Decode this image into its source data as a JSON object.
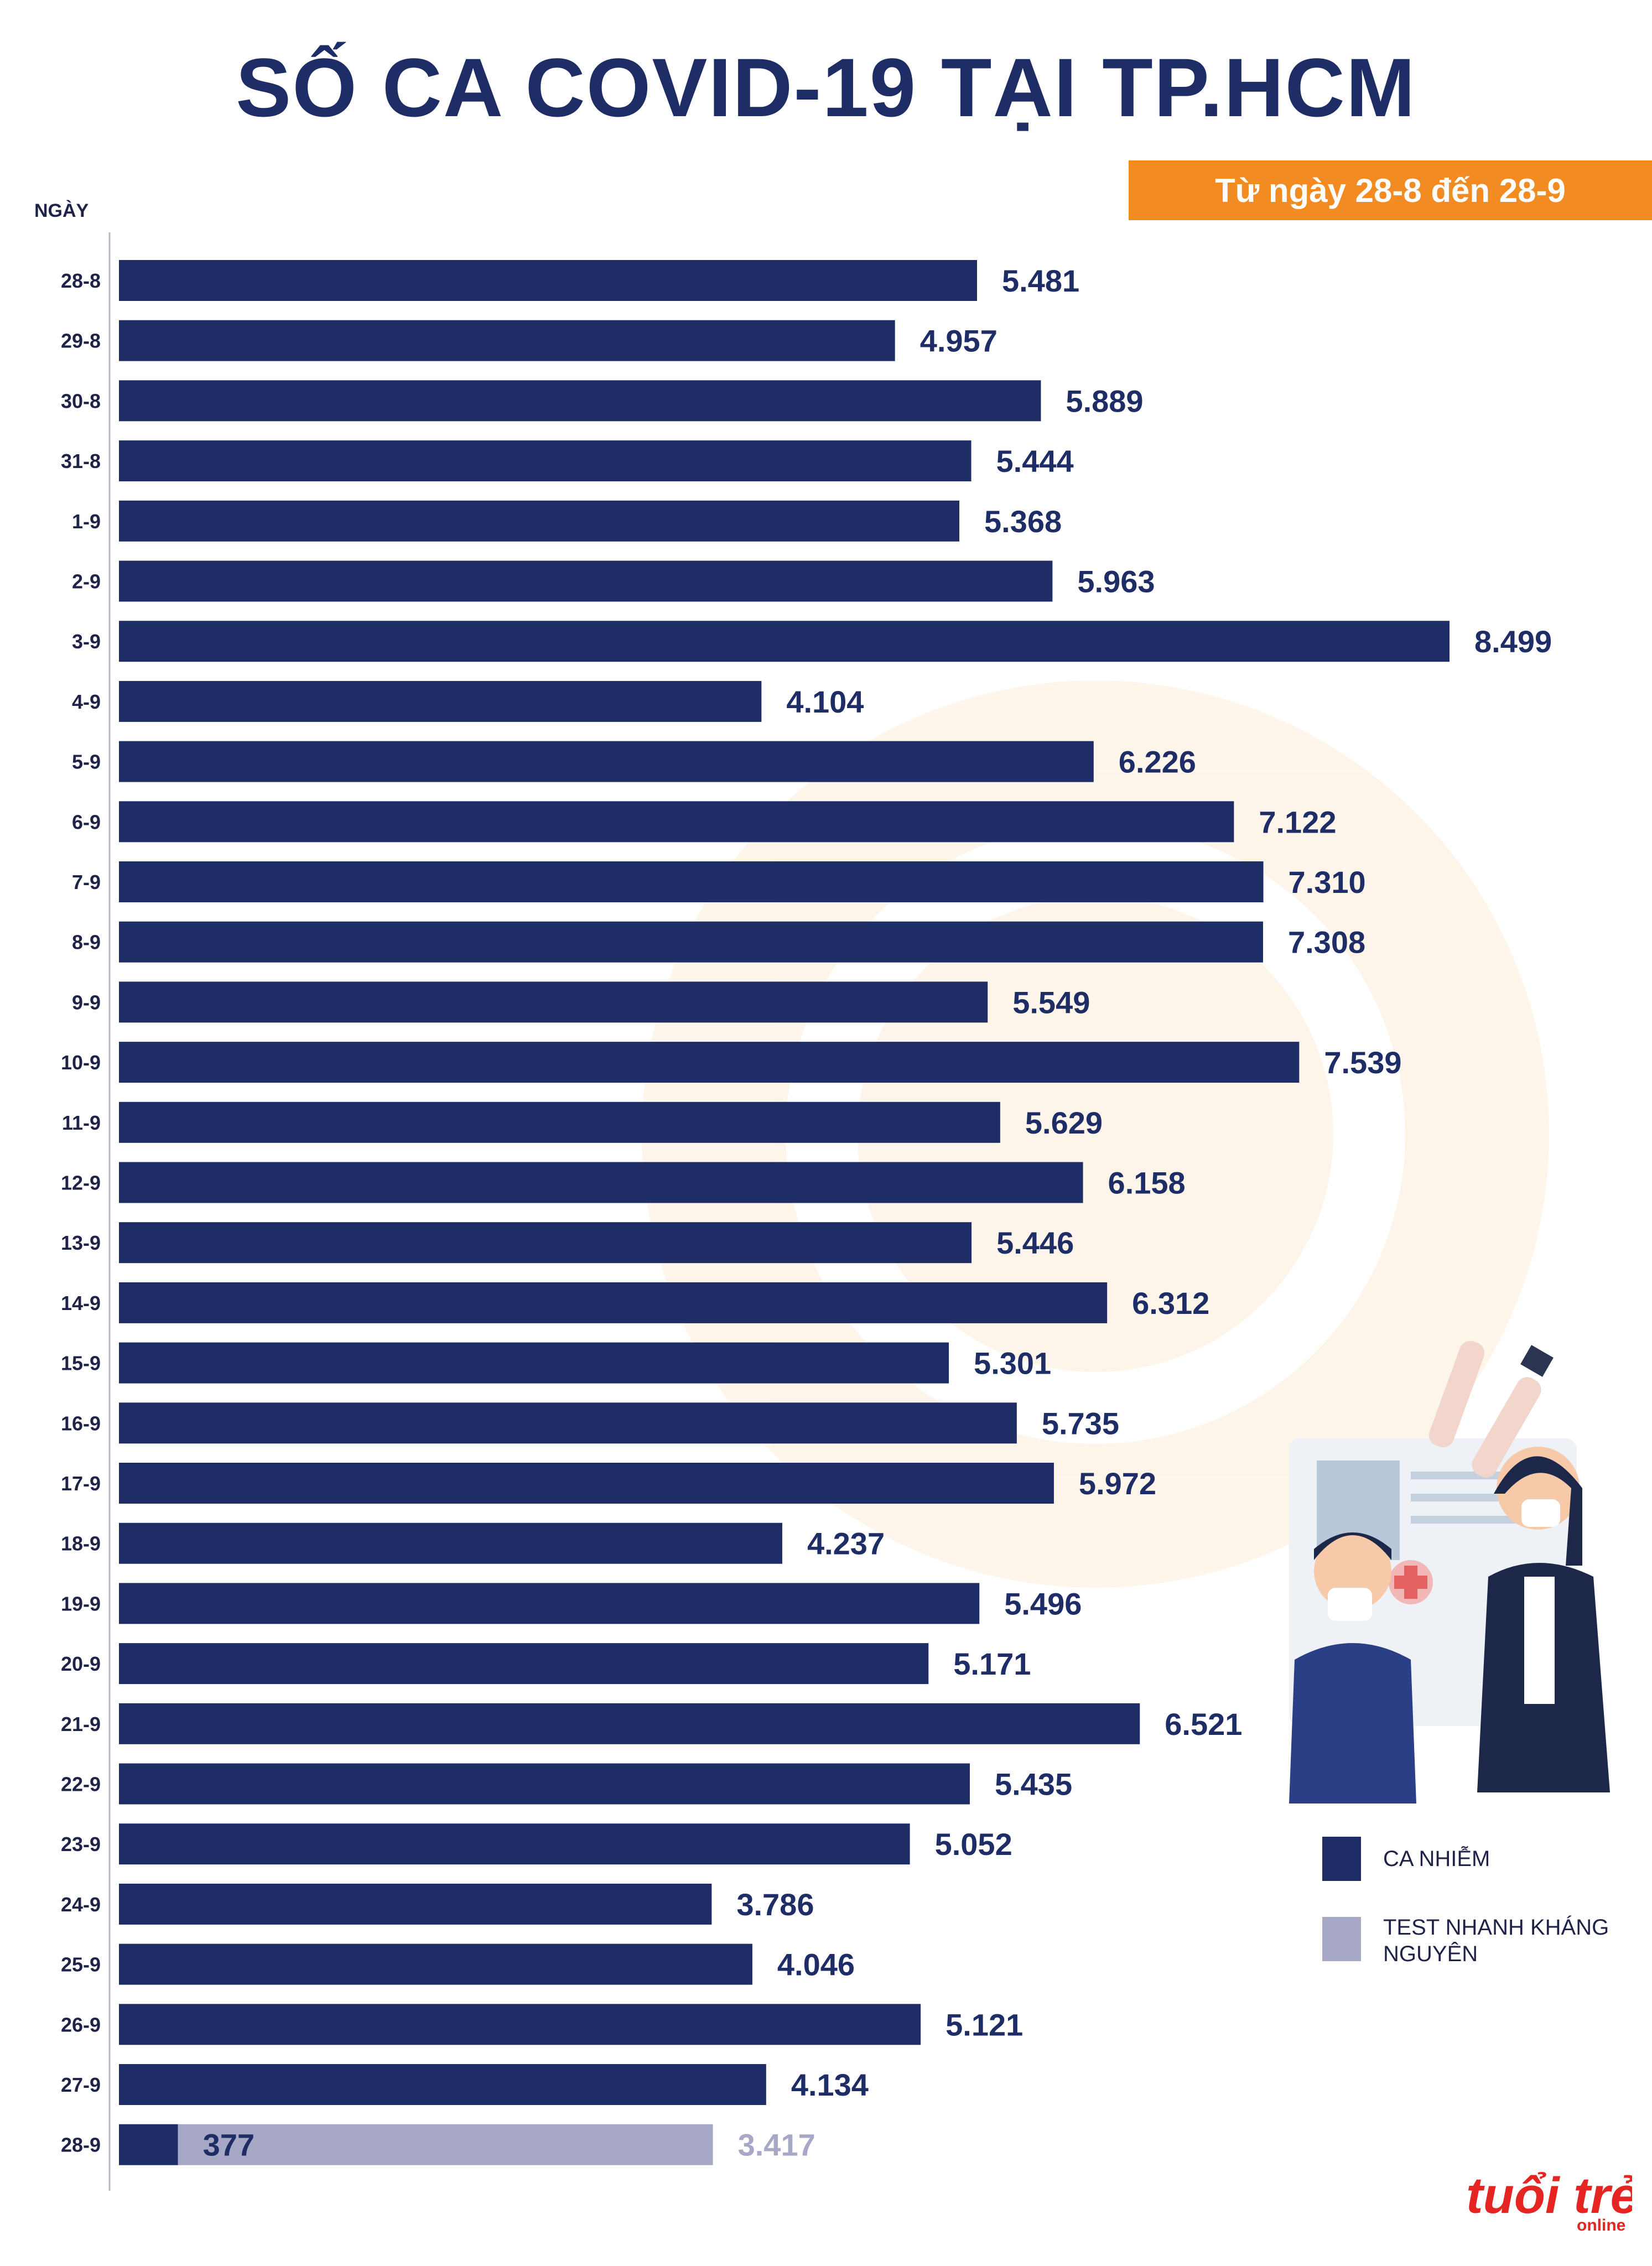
{
  "title": "SỐ CA COVID-19 TẠI TP.HCM",
  "subtitle": "Từ ngày 28-8 đến 28-9",
  "legend": [
    {
      "label": "CA NHIỄM",
      "color": "#1e2d66"
    },
    {
      "label": "TEST NHANH KHÁNG NGUYÊN",
      "color": "#a7a8c6"
    }
  ],
  "logo": {
    "text": "tuổi trẻ",
    "sub": "online"
  },
  "colors": {
    "primary": "#1e2d66",
    "secondary": "#a7a8c6",
    "accent": "#f28b22",
    "logo": "#e52521"
  },
  "chart_data": {
    "type": "bar",
    "orientation": "horizontal",
    "stacked": true,
    "title": "SỐ CA COVID-19 TẠI TP.HCM",
    "subtitle": "Từ ngày 28-8 đến 28-9",
    "ylabel": "NGÀY",
    "xlim": [
      0,
      8499
    ],
    "categories": [
      "28-8",
      "29-8",
      "30-8",
      "31-8",
      "1-9",
      "2-9",
      "3-9",
      "4-9",
      "5-9",
      "6-9",
      "7-9",
      "8-9",
      "9-9",
      "10-9",
      "11-9",
      "12-9",
      "13-9",
      "14-9",
      "15-9",
      "16-9",
      "17-9",
      "18-9",
      "19-9",
      "20-9",
      "21-9",
      "22-9",
      "23-9",
      "24-9",
      "25-9",
      "26-9",
      "27-9",
      "28-9"
    ],
    "series": [
      {
        "name": "CA NHIỄM",
        "color": "#1e2d66",
        "values": [
          5481,
          4957,
          5889,
          5444,
          5368,
          5963,
          8499,
          4104,
          6226,
          7122,
          7310,
          7308,
          5549,
          7539,
          5629,
          6158,
          5446,
          6312,
          5301,
          5735,
          5972,
          4237,
          5496,
          5171,
          6521,
          5435,
          5052,
          3786,
          4046,
          5121,
          4134,
          377
        ],
        "labels": [
          "5.481",
          "4.957",
          "5.889",
          "5.444",
          "5.368",
          "5.963",
          "8.499",
          "4.104",
          "6.226",
          "7.122",
          "7.310",
          "7.308",
          "5.549",
          "7.539",
          "5.629",
          "6.158",
          "5.446",
          "6.312",
          "5.301",
          "5.735",
          "5.972",
          "4.237",
          "5.496",
          "5.171",
          "6.521",
          "5.435",
          "5.052",
          "3.786",
          "4.046",
          "5.121",
          "4.134",
          "377"
        ]
      },
      {
        "name": "TEST NHANH KHÁNG NGUYÊN",
        "color": "#a7a8c6",
        "values": [
          null,
          null,
          null,
          null,
          null,
          null,
          null,
          null,
          null,
          null,
          null,
          null,
          null,
          null,
          null,
          null,
          null,
          null,
          null,
          null,
          null,
          null,
          null,
          null,
          null,
          null,
          null,
          null,
          null,
          null,
          null,
          3417
        ],
        "labels": [
          "",
          "",
          "",
          "",
          "",
          "",
          "",
          "",
          "",
          "",
          "",
          "",
          "",
          "",
          "",
          "",
          "",
          "",
          "",
          "",
          "",
          "",
          "",
          "",
          "",
          "",
          "",
          "",
          "",
          "",
          "",
          "3.417"
        ]
      }
    ]
  }
}
